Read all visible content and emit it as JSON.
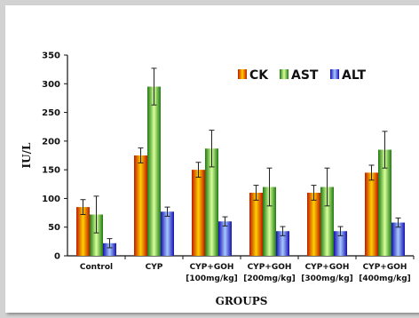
{
  "chart_data": {
    "type": "bar",
    "categories": [
      "Control",
      "CYP",
      "CYP+GOH\n[100mg/kg]",
      "CYP+GOH\n[200mg/kg]",
      "CYP+GOH\n[300mg/kg]",
      "CYP+GOH\n[400mg/kg]"
    ],
    "series": [
      {
        "name": "CK",
        "values": [
          85,
          175,
          150,
          110,
          110,
          145
        ],
        "errors": [
          13,
          13,
          13,
          13,
          13,
          13
        ]
      },
      {
        "name": "AST",
        "values": [
          72,
          295,
          187,
          120,
          120,
          185
        ],
        "errors": [
          32,
          32,
          32,
          33,
          33,
          32
        ]
      },
      {
        "name": "ALT",
        "values": [
          22,
          77,
          60,
          43,
          43,
          58
        ],
        "errors": [
          8,
          8,
          8,
          8,
          8,
          8
        ]
      }
    ],
    "xlabel": "GROUPS",
    "ylabel": "IU/L",
    "ylim": [
      0,
      350
    ],
    "yticks": [
      0,
      50,
      100,
      150,
      200,
      250,
      300,
      350
    ],
    "legend_position": "top-right",
    "grid": false,
    "colors": {
      "CK": "#d42a00",
      "AST": "#2e8b1e",
      "ALT": "#1f2fc0"
    }
  }
}
